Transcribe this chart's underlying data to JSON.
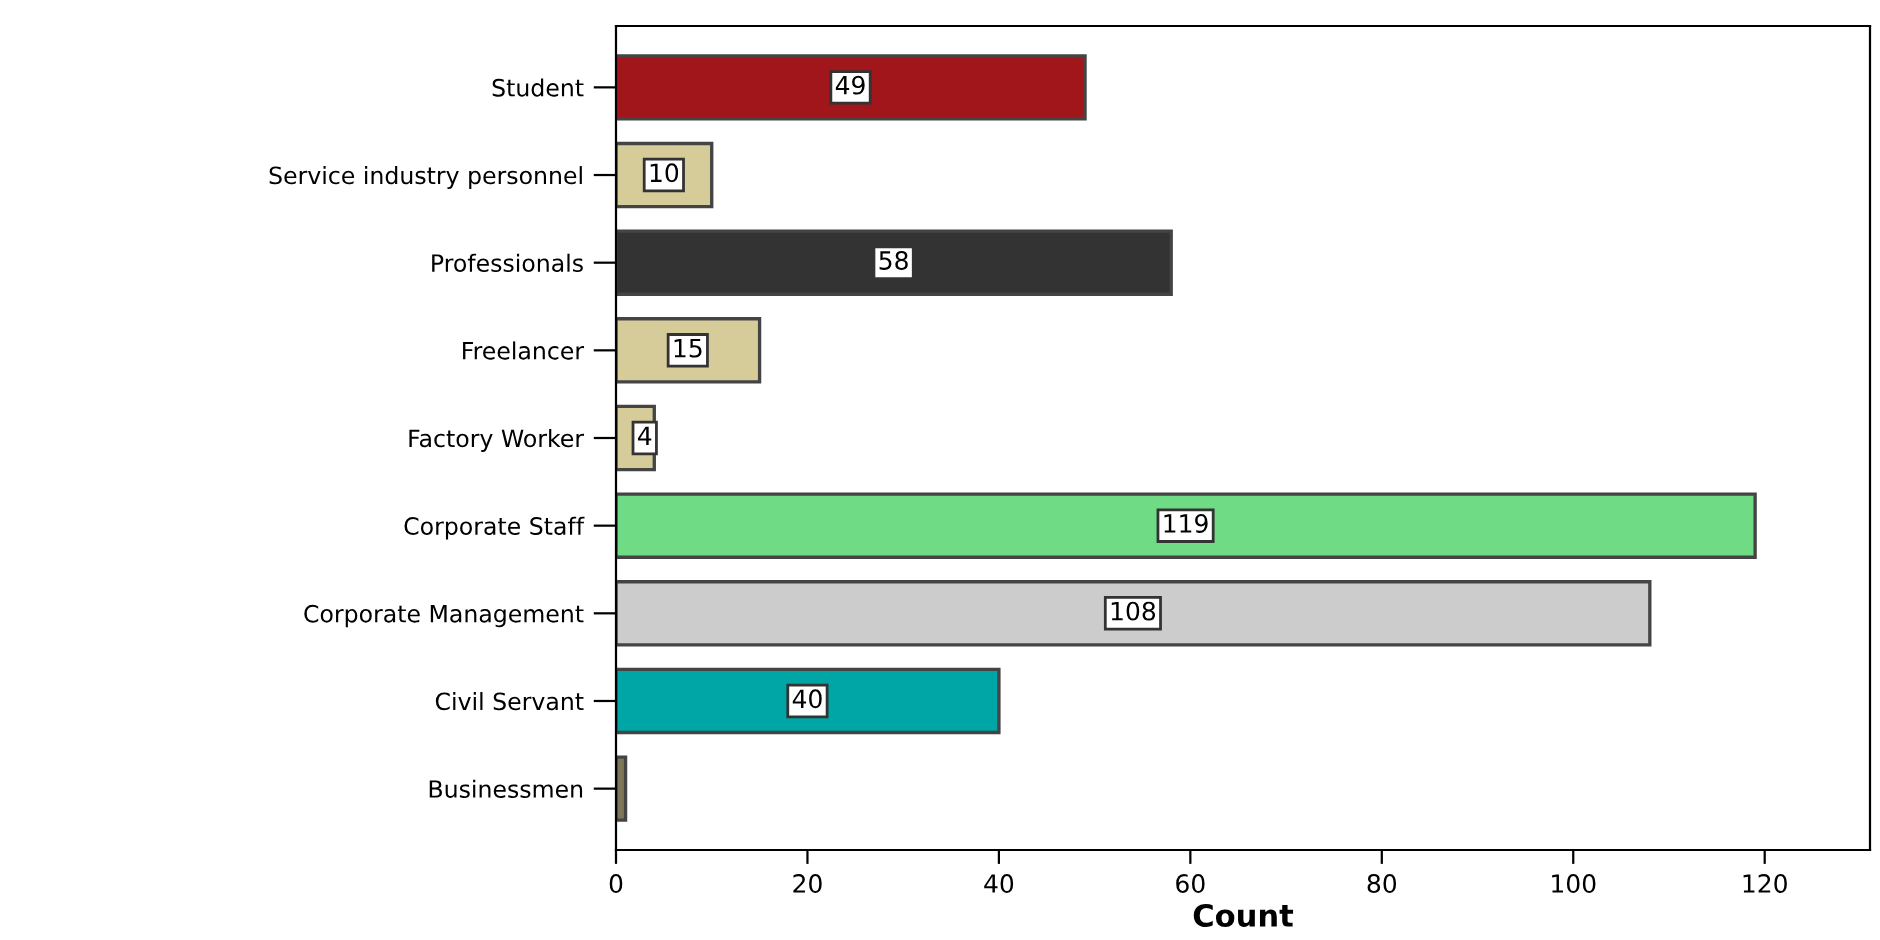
{
  "chart_data": {
    "type": "bar",
    "orientation": "horizontal",
    "xlabel": "Count",
    "categories": [
      "Student",
      "Service industry personnel",
      "Professionals",
      "Freelancer",
      "Factory Worker",
      "Corporate Staff",
      "Corporate Management",
      "Civil Servant",
      "Businessmen"
    ],
    "values": [
      49,
      10,
      58,
      15,
      4,
      119,
      108,
      40,
      1
    ],
    "value_labels": [
      "49",
      "10",
      "58",
      "15",
      "4",
      "119",
      "108",
      "40",
      null
    ],
    "colors": [
      "#a0161b",
      "#d6cc9a",
      "#333333",
      "#d6cc9a",
      "#d6cc9a",
      "#70db85",
      "#cccccc",
      "#00a5a5",
      "#7d7757"
    ],
    "xlim": [
      0,
      131
    ],
    "xticks": [
      0,
      20,
      40,
      60,
      80,
      100,
      120
    ],
    "grid": false
  }
}
